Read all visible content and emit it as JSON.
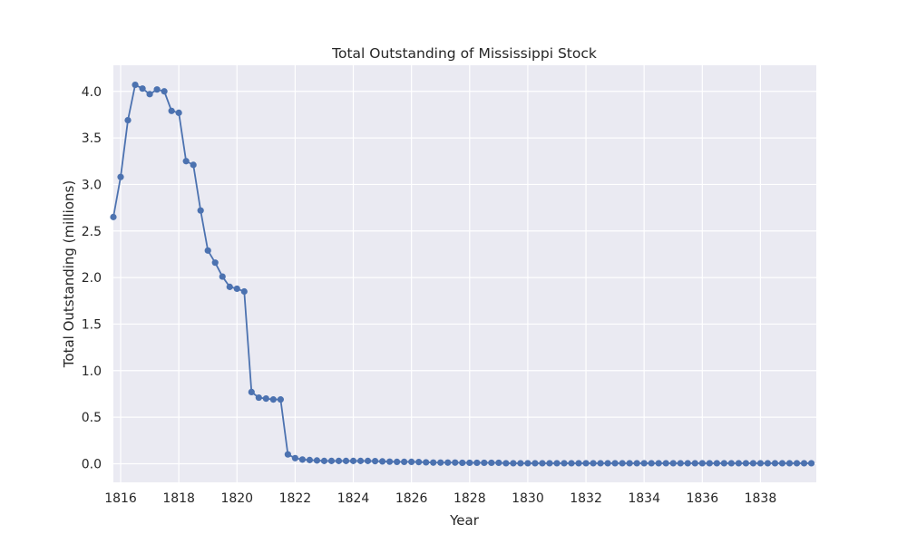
{
  "chart_data": {
    "type": "line",
    "title": "Total Outstanding of Mississippi Stock",
    "xlabel": "Year",
    "ylabel": "Total Outstanding (millions)",
    "xlim": [
      1815.75,
      1839.92
    ],
    "ylim": [
      -0.2,
      4.28
    ],
    "x_ticks": [
      1816,
      1818,
      1820,
      1822,
      1824,
      1826,
      1828,
      1830,
      1832,
      1834,
      1836,
      1838
    ],
    "x_tick_labels": [
      "1816",
      "1818",
      "1820",
      "1822",
      "1824",
      "1826",
      "1828",
      "1830",
      "1832",
      "1834",
      "1836",
      "1838"
    ],
    "y_ticks": [
      0.0,
      0.5,
      1.0,
      1.5,
      2.0,
      2.5,
      3.0,
      3.5,
      4.0
    ],
    "y_tick_labels": [
      "0.0",
      "0.5",
      "1.0",
      "1.5",
      "2.0",
      "2.5",
      "3.0",
      "3.5",
      "4.0"
    ],
    "grid": true,
    "line_color": "#4c72b0",
    "background_color": "#eaeaf2",
    "x_start": 1815.75,
    "x_step": 0.25,
    "values": [
      2.65,
      3.08,
      3.69,
      4.07,
      4.03,
      3.97,
      4.02,
      4.0,
      3.79,
      3.77,
      3.25,
      3.21,
      2.72,
      2.29,
      2.16,
      2.01,
      1.9,
      1.88,
      1.85,
      0.77,
      0.71,
      0.7,
      0.69,
      0.69,
      0.1,
      0.06,
      0.045,
      0.04,
      0.035,
      0.03,
      0.03,
      0.03,
      0.03,
      0.03,
      0.03,
      0.03,
      0.028,
      0.025,
      0.022,
      0.02,
      0.02,
      0.02,
      0.018,
      0.015,
      0.012,
      0.012,
      0.012,
      0.012,
      0.01,
      0.01,
      0.01,
      0.01,
      0.01,
      0.01,
      0.005,
      0.005,
      0.005,
      0.005,
      0.005,
      0.005,
      0.005,
      0.005,
      0.005,
      0.005,
      0.005,
      0.005,
      0.005,
      0.005,
      0.005,
      0.005,
      0.005,
      0.005,
      0.005,
      0.005,
      0.005,
      0.005,
      0.005,
      0.005,
      0.005,
      0.005,
      0.005,
      0.005,
      0.005,
      0.005,
      0.005,
      0.005,
      0.005,
      0.005,
      0.005,
      0.005,
      0.005,
      0.005,
      0.005,
      0.005,
      0.005,
      0.005,
      0.005
    ]
  }
}
